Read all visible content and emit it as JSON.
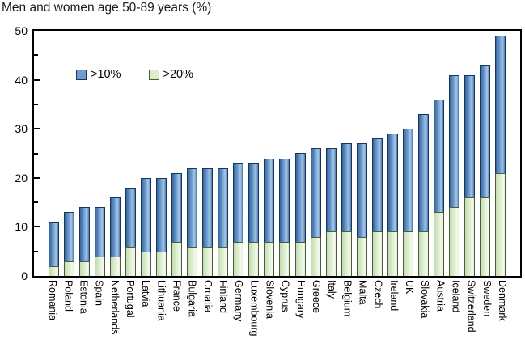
{
  "title": "Men and women age 50-89 years (%)",
  "legend": {
    "items": [
      {
        "label": ">10%",
        "color": "#6f9cce",
        "border": "#17365d"
      },
      {
        "label": ">20%",
        "color": "#dcedcd",
        "border": "#4c5b39"
      }
    ]
  },
  "colors": {
    "blue_fill": "#6f9cce",
    "blue_border": "#17365d",
    "green_fill": "#dcedcd",
    "green_border": "#4c5b39",
    "axis": "#000000",
    "background": "#ffffff"
  },
  "chart_data": {
    "type": "bar",
    "subtype": "overlay-stacked (green '>20%' subset drawn inside blue '>10%' total)",
    "title": "Men and women age 50-89 years (%)",
    "categories": [
      "Romania",
      "Poland",
      "Estonia",
      "Spain",
      "Netherlands",
      "Portugal",
      "Latvia",
      "Lithuania",
      "France",
      "Bulgaria",
      "Croatia",
      "Finland",
      "Germany",
      "Luxembourg",
      "Slovenia",
      "Cyprus",
      "Hungary",
      "Greece",
      "Italy",
      "Belgium",
      "Malta",
      "Czech",
      "Ireland",
      "UK",
      "Slovakia",
      "Austria",
      "Iceland",
      "Switzerland",
      "Sweden",
      "Denmark"
    ],
    "series": [
      {
        "name": ">10%",
        "values": [
          11,
          13,
          14,
          14,
          16,
          18,
          20,
          20,
          21,
          22,
          22,
          22,
          23,
          23,
          24,
          24,
          25,
          26,
          26,
          27,
          27,
          28,
          29,
          30,
          33,
          36,
          41,
          41,
          43,
          49
        ]
      },
      {
        "name": ">20%",
        "values": [
          2,
          3,
          3,
          4,
          4,
          6,
          5,
          5,
          7,
          6,
          6,
          6,
          7,
          7,
          7,
          7,
          7,
          8,
          9,
          9,
          8,
          9,
          9,
          9,
          9,
          13,
          14,
          16,
          16,
          21
        ]
      }
    ],
    "xlabel": "",
    "ylabel": "",
    "ylim": [
      0,
      50
    ],
    "yticks": [
      0,
      10,
      20,
      30,
      40,
      50
    ],
    "minor_tick_step": 5,
    "grid": false,
    "legend_position": "inside top-left",
    "x_label_orientation": "vertical top-to-bottom"
  }
}
